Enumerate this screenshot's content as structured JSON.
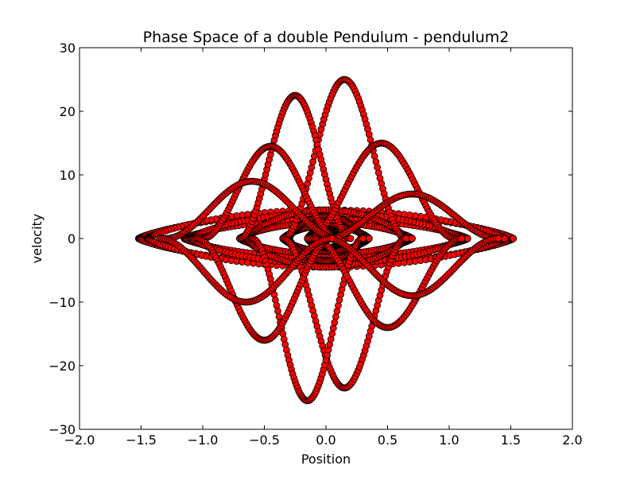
{
  "chart_data": {
    "type": "scatter",
    "title": "Phase Space of a double Pendulum - pendulum2",
    "xlabel": "Position",
    "ylabel": "velocity",
    "xlim": [
      -2.0,
      2.0
    ],
    "ylim": [
      -30,
      30
    ],
    "x_ticks": [
      "−2.0",
      "−1.5",
      "−1.0",
      "−0.5",
      "0.0",
      "0.5",
      "1.0",
      "1.5",
      "2.0"
    ],
    "y_ticks": [
      "−30",
      "−20",
      "−10",
      "0",
      "10",
      "20",
      "30"
    ],
    "grid": false,
    "legend": "none",
    "marker": {
      "shape": "circle",
      "face_color": "#ff0000",
      "edge_color": "#000000"
    },
    "loops": [
      {
        "amplitude": 1.52,
        "max_velocity": 4.0
      },
      {
        "amplitude": 1.45,
        "max_velocity": 4.5
      },
      {
        "amplitude": 1.15,
        "max_velocity": 3.0
      },
      {
        "amplitude": 1.1,
        "max_velocity": 4.0
      },
      {
        "amplitude": 0.7,
        "max_velocity": 2.5
      },
      {
        "amplitude": 0.65,
        "max_velocity": 4.5
      },
      {
        "amplitude": 0.35,
        "max_velocity": 2.0
      },
      {
        "amplitude": 0.3,
        "max_velocity": 3.5
      },
      {
        "amplitude": 0.15,
        "max_velocity": 1.5
      }
    ],
    "lobes": [
      {
        "center_x": 0.15,
        "width": 0.5,
        "peak_velocity": 25
      },
      {
        "center_x": -0.25,
        "width": 0.45,
        "peak_velocity": 22.5
      },
      {
        "center_x": 0.45,
        "width": 0.6,
        "peak_velocity": 15
      },
      {
        "center_x": -0.45,
        "width": 0.55,
        "peak_velocity": 14.5
      },
      {
        "center_x": 0.7,
        "width": 0.7,
        "peak_velocity": 7
      },
      {
        "center_x": -0.6,
        "width": 0.7,
        "peak_velocity": 9
      },
      {
        "center_x": 0.15,
        "width": 0.5,
        "peak_velocity": -23.5
      },
      {
        "center_x": -0.15,
        "width": 0.45,
        "peak_velocity": -25.5
      },
      {
        "center_x": 0.5,
        "width": 0.6,
        "peak_velocity": -14
      },
      {
        "center_x": -0.5,
        "width": 0.55,
        "peak_velocity": -16
      },
      {
        "center_x": 0.7,
        "width": 0.7,
        "peak_velocity": -9
      },
      {
        "center_x": -0.65,
        "width": 0.7,
        "peak_velocity": -10
      }
    ]
  }
}
